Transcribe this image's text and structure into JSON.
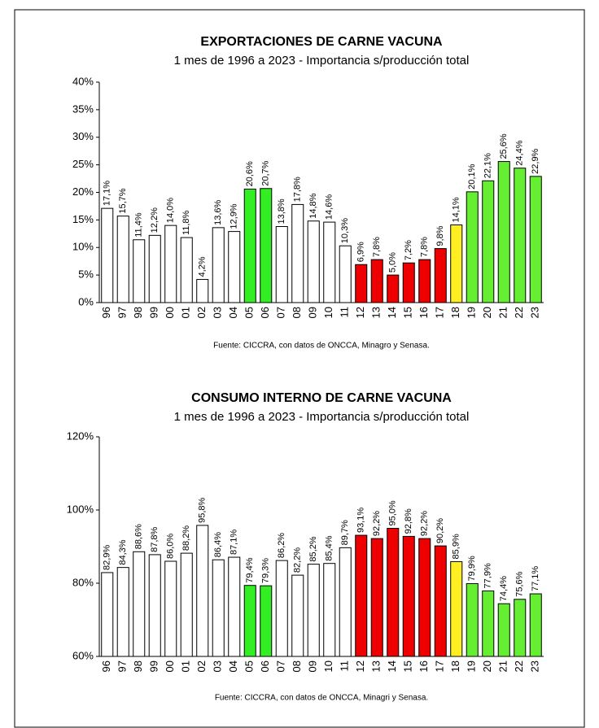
{
  "chart_data": [
    {
      "type": "bar",
      "title": "EXPORTACIONES DE CARNE VACUNA",
      "subtitle": "1 mes de 1996 a 2023 - Importancia s/producción total",
      "source": "Fuente: CICCRA, con datos de ONCCA, Minagro y Senasa.",
      "categories": [
        "96",
        "97",
        "98",
        "99",
        "00",
        "01",
        "02",
        "03",
        "04",
        "05",
        "06",
        "07",
        "08",
        "09",
        "10",
        "11",
        "12",
        "13",
        "14",
        "15",
        "16",
        "17",
        "18",
        "19",
        "20",
        "21",
        "22",
        "23"
      ],
      "values": [
        17.1,
        15.7,
        11.4,
        12.2,
        14.0,
        11.8,
        4.2,
        13.6,
        12.9,
        20.6,
        20.7,
        13.8,
        17.8,
        14.8,
        14.6,
        10.3,
        6.9,
        7.8,
        5.0,
        7.2,
        7.8,
        9.8,
        14.1,
        20.1,
        22.1,
        25.6,
        24.4,
        22.9
      ],
      "value_labels": [
        "17,1%",
        "15,7%",
        "11,4%",
        "12,2%",
        "14,0%",
        "11,8%",
        "4,2%",
        "13,6%",
        "12,9%",
        "20,6%",
        "20,7%",
        "13,8%",
        "17,8%",
        "14,8%",
        "14,6%",
        "10,3%",
        "6,9%",
        "7,8%",
        "5,0%",
        "7,2%",
        "7,8%",
        "9,8%",
        "14,1%",
        "20,1%",
        "22,1%",
        "25,6%",
        "24,4%",
        "22,9%"
      ],
      "colors": [
        "#ffffff",
        "#ffffff",
        "#ffffff",
        "#ffffff",
        "#ffffff",
        "#ffffff",
        "#ffffff",
        "#ffffff",
        "#ffffff",
        "#33ee22",
        "#33ee22",
        "#ffffff",
        "#ffffff",
        "#ffffff",
        "#ffffff",
        "#ffffff",
        "#ee0000",
        "#ee0000",
        "#ee0000",
        "#ee0000",
        "#ee0000",
        "#ee0000",
        "#ffee22",
        "#66ee33",
        "#66ee33",
        "#66ee33",
        "#66ee33",
        "#66ee33"
      ],
      "ylim": [
        0,
        40
      ],
      "yticks": [
        {
          "value": 0,
          "label": "0%"
        },
        {
          "value": 5,
          "label": "5%"
        },
        {
          "value": 10,
          "label": "10%"
        },
        {
          "value": 15,
          "label": "15%"
        },
        {
          "value": 20,
          "label": "20%"
        },
        {
          "value": 25,
          "label": "25%"
        },
        {
          "value": 30,
          "label": "30%"
        },
        {
          "value": 35,
          "label": "35%"
        },
        {
          "value": 40,
          "label": "40%"
        }
      ]
    },
    {
      "type": "bar",
      "title": "CONSUMO INTERNO DE CARNE VACUNA",
      "subtitle": "1 mes de 1996 a 2023 - Importancia s/producción total",
      "source": "Fuente: CICCRA, con datos de ONCCA, Minagri y Senasa.",
      "categories": [
        "96",
        "97",
        "98",
        "99",
        "00",
        "01",
        "02",
        "03",
        "04",
        "05",
        "06",
        "07",
        "08",
        "09",
        "10",
        "11",
        "12",
        "13",
        "14",
        "15",
        "16",
        "17",
        "18",
        "19",
        "20",
        "21",
        "22",
        "23"
      ],
      "values": [
        82.9,
        84.3,
        88.6,
        87.8,
        86.0,
        88.2,
        95.8,
        86.4,
        87.1,
        79.4,
        79.3,
        86.2,
        82.2,
        85.2,
        85.4,
        89.7,
        93.1,
        92.2,
        95.0,
        92.8,
        92.2,
        90.2,
        85.9,
        79.9,
        77.9,
        74.4,
        75.6,
        77.1
      ],
      "value_labels": [
        "82,9%",
        "84,3%",
        "88,6%",
        "87,8%",
        "86,0%",
        "88,2%",
        "95,8%",
        "86,4%",
        "87,1%",
        "79,4%",
        "79,3%",
        "86,2%",
        "82,2%",
        "85,2%",
        "85,4%",
        "89,7%",
        "93,1%",
        "92,2%",
        "95,0%",
        "92,8%",
        "92,2%",
        "90,2%",
        "85,9%",
        "79,9%",
        "77,9%",
        "74,4%",
        "75,6%",
        "77,1%"
      ],
      "colors": [
        "#ffffff",
        "#ffffff",
        "#ffffff",
        "#ffffff",
        "#ffffff",
        "#ffffff",
        "#ffffff",
        "#ffffff",
        "#ffffff",
        "#33ee22",
        "#33ee22",
        "#ffffff",
        "#ffffff",
        "#ffffff",
        "#ffffff",
        "#ffffff",
        "#ee0000",
        "#ee0000",
        "#ee0000",
        "#ee0000",
        "#ee0000",
        "#ee0000",
        "#ffee22",
        "#66ee33",
        "#66ee33",
        "#66ee33",
        "#66ee33",
        "#66ee33"
      ],
      "ylim": [
        60,
        120
      ],
      "yticks": [
        {
          "value": 60,
          "label": "60%"
        },
        {
          "value": 80,
          "label": "80%"
        },
        {
          "value": 100,
          "label": "100%"
        },
        {
          "value": 120,
          "label": "120%"
        }
      ]
    }
  ]
}
